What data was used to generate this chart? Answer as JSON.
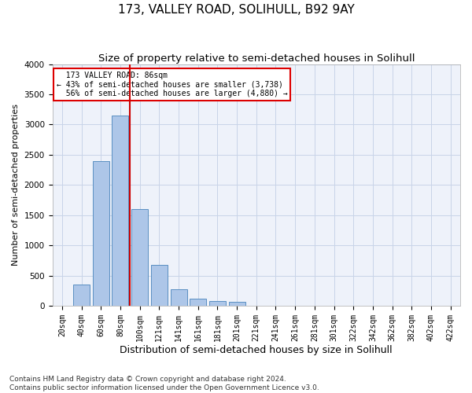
{
  "title1": "173, VALLEY ROAD, SOLIHULL, B92 9AY",
  "title2": "Size of property relative to semi-detached houses in Solihull",
  "xlabel": "Distribution of semi-detached houses by size in Solihull",
  "ylabel": "Number of semi-detached properties",
  "footnote": "Contains HM Land Registry data © Crown copyright and database right 2024.\nContains public sector information licensed under the Open Government Licence v3.0.",
  "bin_labels": [
    "20sqm",
    "40sqm",
    "60sqm",
    "80sqm",
    "100sqm",
    "121sqm",
    "141sqm",
    "161sqm",
    "181sqm",
    "201sqm",
    "221sqm",
    "241sqm",
    "261sqm",
    "281sqm",
    "301sqm",
    "322sqm",
    "342sqm",
    "362sqm",
    "382sqm",
    "402sqm",
    "422sqm"
  ],
  "bar_values": [
    0,
    350,
    2400,
    3150,
    1600,
    680,
    270,
    120,
    80,
    60,
    0,
    0,
    0,
    0,
    0,
    0,
    0,
    0,
    0,
    0,
    0
  ],
  "bar_color": "#adc6e8",
  "bar_edge_color": "#5a8fc2",
  "property_size_bin": 3,
  "property_label": "173 VALLEY ROAD: 86sqm",
  "pct_smaller": 43,
  "pct_larger": 56,
  "n_smaller": 3738,
  "n_larger": 4880,
  "annotation_box_color": "#dd0000",
  "vline_color": "#cc0000",
  "grid_color": "#c8d4e8",
  "background_color": "#eef2fa",
  "ylim": [
    0,
    4000
  ],
  "title1_fontsize": 11,
  "title2_fontsize": 9.5,
  "xlabel_fontsize": 9,
  "ylabel_fontsize": 8,
  "tick_fontsize": 7,
  "footnote_fontsize": 6.5
}
